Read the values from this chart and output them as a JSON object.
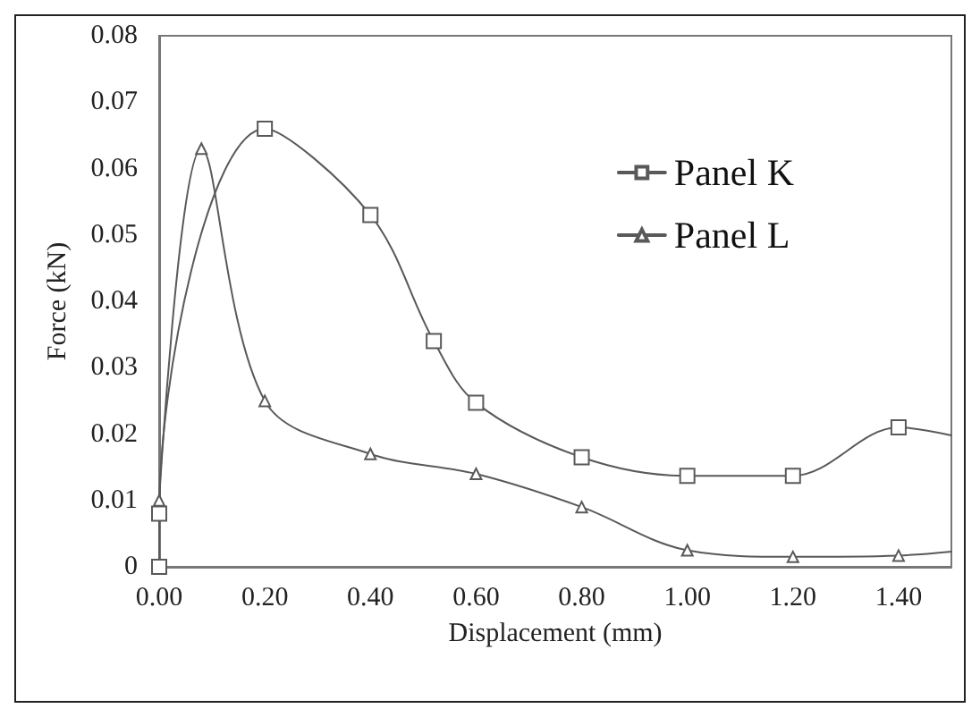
{
  "chart_data": {
    "type": "line",
    "xlabel": "Displacement (mm)",
    "ylabel": "Force (kN)",
    "xlim": [
      0,
      1.5
    ],
    "ylim": [
      0,
      0.08
    ],
    "xticks": [
      {
        "value": 0,
        "label": "0.00"
      },
      {
        "value": 0.2,
        "label": "0.20"
      },
      {
        "value": 0.4,
        "label": "0.40"
      },
      {
        "value": 0.6,
        "label": "0.60"
      },
      {
        "value": 0.8,
        "label": "0.80"
      },
      {
        "value": 1.0,
        "label": "1.00"
      },
      {
        "value": 1.2,
        "label": "1.20"
      },
      {
        "value": 1.4,
        "label": "1.40"
      }
    ],
    "yticks": [
      0,
      0.01,
      0.02,
      0.03,
      0.04,
      0.05,
      0.06,
      0.07,
      0.08
    ],
    "grid": false,
    "legend": "top right",
    "line_style": "solid",
    "series": [
      {
        "name": "Panel K",
        "color": "#595959",
        "marker": "square",
        "x": [
          0,
          0,
          0.2,
          0.4,
          0.52,
          0.6,
          0.8,
          1.0,
          1.2,
          1.4,
          1.5
        ],
        "values": [
          0,
          0.008,
          0.066,
          0.053,
          0.034,
          0.0247,
          0.0165,
          0.0137,
          0.0137,
          0.021,
          0.0198
        ]
      },
      {
        "name": "Panel L",
        "color": "#595959",
        "marker": "triangle",
        "x": [
          0,
          0.08,
          0.2,
          0.4,
          0.6,
          0.8,
          1.0,
          1.2,
          1.4,
          1.5
        ],
        "values": [
          0.01,
          0.063,
          0.025,
          0.017,
          0.014,
          0.009,
          0.0025,
          0.0015,
          0.0017,
          0.0023
        ]
      }
    ]
  }
}
